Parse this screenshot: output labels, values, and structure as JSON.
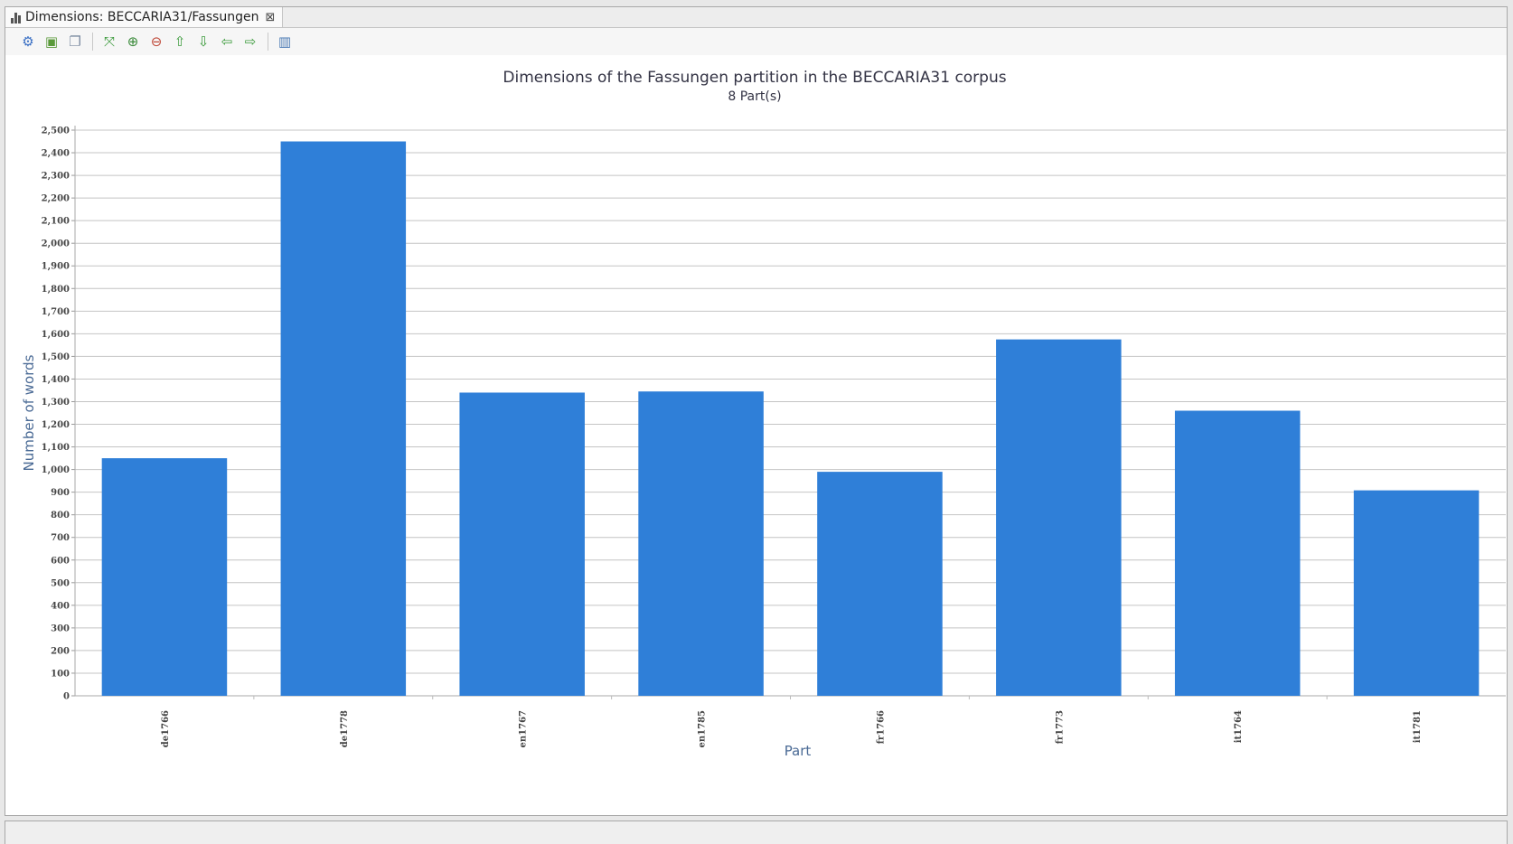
{
  "tab": {
    "title": "Dimensions: BECCARIA31/Fassungen"
  },
  "toolbar": {
    "buttons": [
      {
        "name": "rendering-options-icon",
        "glyph": "⚙",
        "color": "#3a6fc4"
      },
      {
        "name": "export-chart-icon",
        "glyph": "▣",
        "color": "#5a9a3a"
      },
      {
        "name": "copy-chart-icon",
        "glyph": "❐",
        "color": "#7a8aa0"
      },
      {
        "sep": true
      },
      {
        "name": "reset-view-icon",
        "glyph": "⤧",
        "color": "#3a9a3a"
      },
      {
        "name": "zoom-in-icon",
        "glyph": "⊕",
        "color": "#3a8a3a"
      },
      {
        "name": "zoom-out-icon",
        "glyph": "⊖",
        "color": "#c04a3a"
      },
      {
        "name": "pan-up-icon",
        "glyph": "⇧",
        "color": "#3a9a3a"
      },
      {
        "name": "pan-down-icon",
        "glyph": "⇩",
        "color": "#3a9a3a"
      },
      {
        "name": "pan-left-icon",
        "glyph": "⇦",
        "color": "#3a9a3a"
      },
      {
        "name": "pan-right-icon",
        "glyph": "⇨",
        "color": "#3a9a3a"
      },
      {
        "sep": true
      },
      {
        "name": "chart-type-icon",
        "glyph": "▥",
        "color": "#4a7ab4"
      }
    ]
  },
  "chart_data": {
    "type": "bar",
    "title": "Dimensions of the Fassungen partition in the BECCARIA31 corpus",
    "subtitle": "8 Part(s)",
    "xlabel": "Part",
    "ylabel": "Number of words",
    "categories": [
      "de1766",
      "de1778",
      "en1767",
      "en1785",
      "fr1766",
      "fr1773",
      "it1764",
      "it1781"
    ],
    "values": [
      1050,
      2450,
      1340,
      1345,
      990,
      1575,
      1260,
      908
    ],
    "ylim": [
      0,
      2500
    ],
    "ytick_step": 100,
    "grid": true,
    "bar_color": "#2f7fd8",
    "grid_color": "#c4c4c4",
    "label_color": "#4a6a95",
    "title_color": "#333344"
  }
}
